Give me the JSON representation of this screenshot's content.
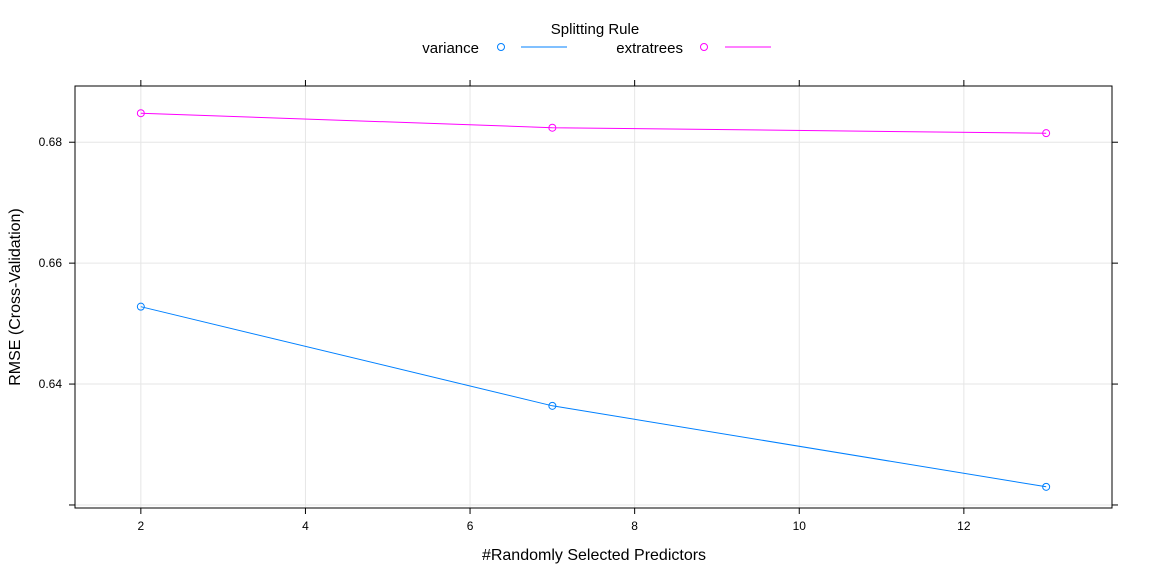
{
  "chart_data": {
    "type": "line",
    "legend": {
      "title": "Splitting Rule",
      "placement": "top"
    },
    "xlabel": "#Randomly Selected Predictors",
    "ylabel": "RMSE (Cross-Validation)",
    "x": [
      2,
      7,
      13
    ],
    "xlim": [
      1.2,
      13.8
    ],
    "ylim": [
      0.6195,
      0.6893
    ],
    "xticks": [
      2,
      4,
      6,
      8,
      10,
      12
    ],
    "yticks": [
      0.62,
      0.64,
      0.66,
      0.68
    ],
    "ytick_labels": [
      "",
      "0.64",
      "0.66",
      "0.68"
    ],
    "grid": true,
    "series": [
      {
        "name": "variance",
        "color": "#0080ff",
        "marker": "circle",
        "values": [
          0.6528,
          0.6364,
          0.623
        ]
      },
      {
        "name": "extratrees",
        "color": "#ff00ff",
        "marker": "circle",
        "values": [
          0.6848,
          0.6824,
          0.6815
        ]
      }
    ]
  }
}
